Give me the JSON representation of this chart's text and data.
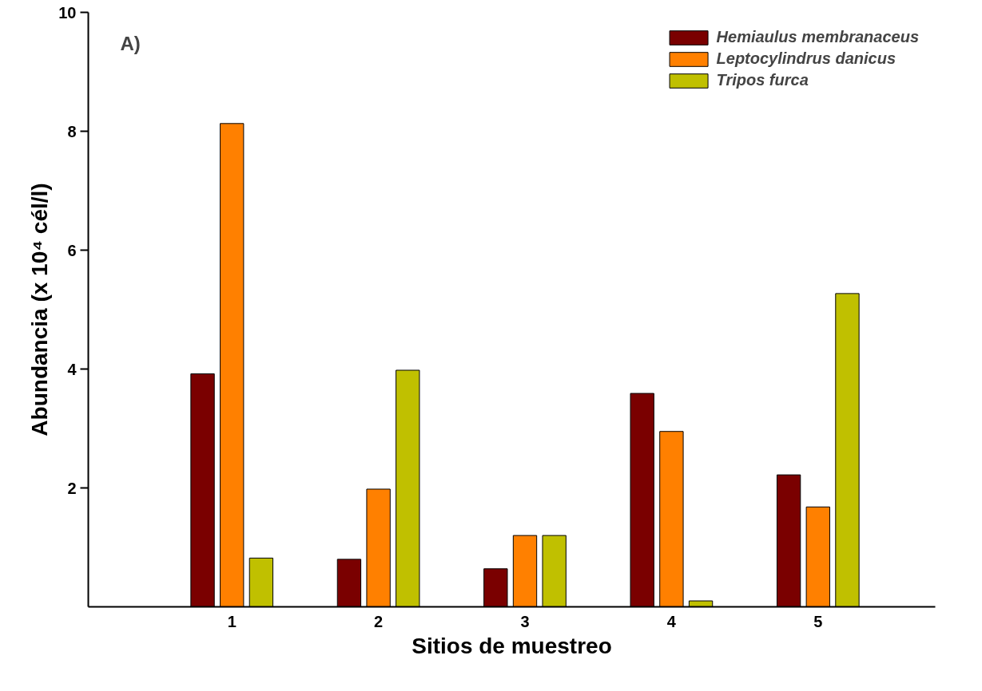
{
  "chart_data": {
    "type": "bar",
    "xlabel": "Sitios de muestreo",
    "ylabel": "Abundancia (x 10⁴ cél/l)",
    "annotations": [
      "A)"
    ],
    "categories": [
      "1",
      "2",
      "3",
      "4",
      "5"
    ],
    "series": [
      {
        "name": "Hemiaulus membranaceus",
        "color": "#7a0000",
        "values": [
          3.92,
          0.8,
          0.64,
          3.59,
          2.22
        ]
      },
      {
        "name": "Leptocylindrus danicus",
        "color": "#ff8000",
        "values": [
          8.13,
          1.98,
          1.2,
          2.95,
          1.68
        ]
      },
      {
        "name": "Tripos furca",
        "color": "#c0c000",
        "values": [
          0.82,
          3.98,
          1.2,
          0.1,
          5.27
        ]
      }
    ],
    "ylim": [
      0,
      10
    ],
    "yticks": [
      2,
      4,
      6,
      8,
      10
    ],
    "grid": false,
    "legend": "top right"
  }
}
